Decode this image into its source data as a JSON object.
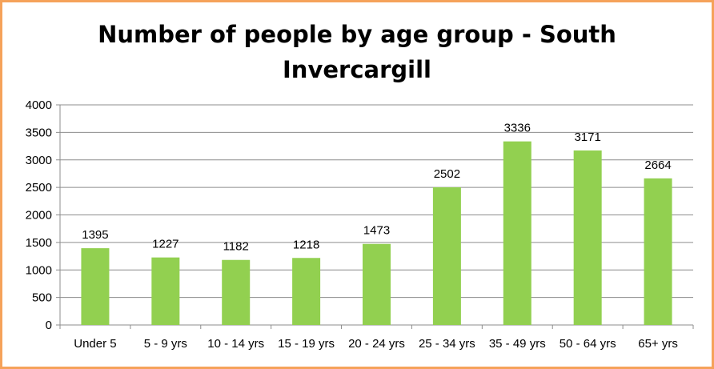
{
  "chart_data": {
    "type": "bar",
    "title": "Number of people by age group - South Invercargill",
    "title_lines": [
      "Number of people by age group - South",
      "Invercargill"
    ],
    "categories": [
      "Under 5",
      "5 - 9 yrs",
      "10 - 14 yrs",
      "15 - 19 yrs",
      "20 - 24 yrs",
      "25 - 34 yrs",
      "35 - 49 yrs",
      "50 - 64 yrs",
      "65+ yrs"
    ],
    "values": [
      1395,
      1227,
      1182,
      1218,
      1473,
      2502,
      3336,
      3171,
      2664
    ],
    "ylim": [
      0,
      4000
    ],
    "yticks": [
      0,
      500,
      1000,
      1500,
      2000,
      2500,
      3000,
      3500,
      4000
    ],
    "grid": true,
    "data_labels": true,
    "bar_color": "#92d050",
    "frame_color": "#f5a25a"
  }
}
